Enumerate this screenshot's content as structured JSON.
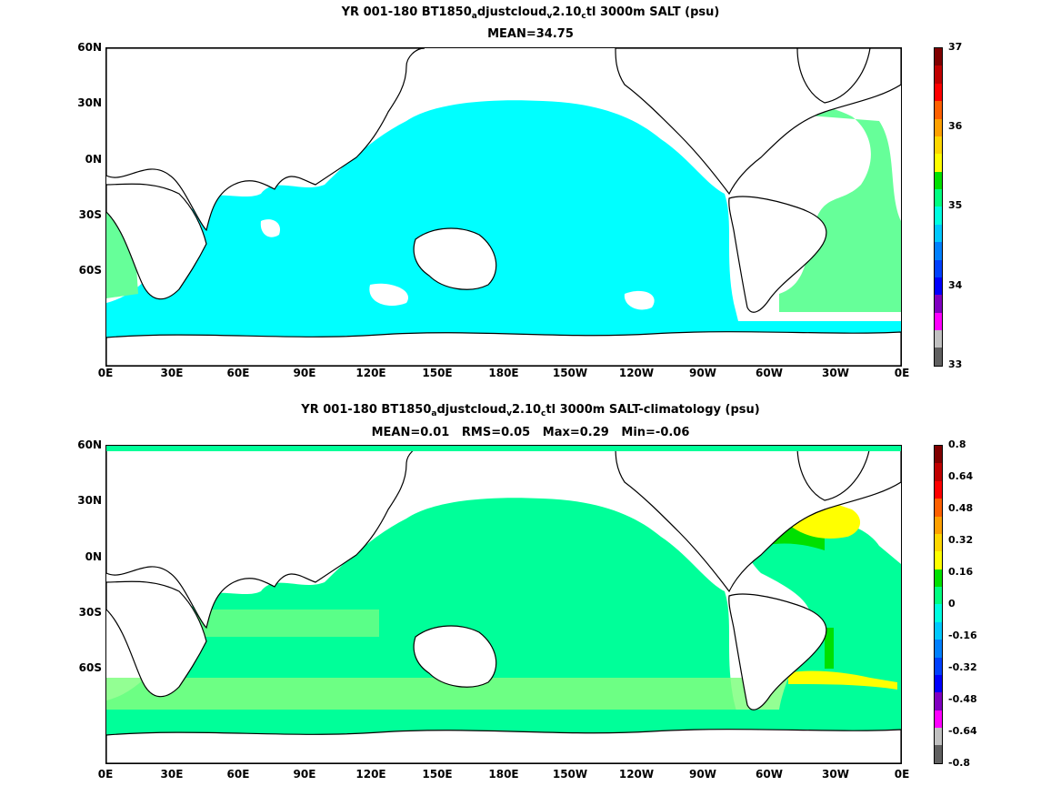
{
  "top": {
    "title_pre": "YR 001-180 BT1850",
    "title_sub1": "a",
    "title_mid": "djustcloud",
    "title_sub2": "v",
    "title_mid2": "2.10",
    "title_sub3": "c",
    "title_post": "tl 3000m SALT (psu)",
    "stats": "MEAN=34.75",
    "colorbar": {
      "labels": [
        "37",
        "36",
        "35",
        "34",
        "33"
      ],
      "colors": [
        "#800000",
        "#c00000",
        "#ff0000",
        "#ff6000",
        "#ffa000",
        "#ffd700",
        "#ffff00",
        "#00e000",
        "#00ff80",
        "#00ffe0",
        "#00c8ff",
        "#0080ff",
        "#0040ff",
        "#0000ff",
        "#8000c0",
        "#ff00ff",
        "#c0c0c0",
        "#606060"
      ]
    }
  },
  "bottom": {
    "title_pre": "YR 001-180 BT1850",
    "title_sub1": "a",
    "title_mid": "djustcloud",
    "title_sub2": "v",
    "title_mid2": "2.10",
    "title_sub3": "c",
    "title_post": "tl 3000m SALT-climatology (psu)",
    "stats": "MEAN=0.01   RMS=0.05   Max=0.29   Min=-0.06",
    "colorbar": {
      "labels": [
        "0.8",
        "0.64",
        "0.48",
        "0.32",
        "0.16",
        "0",
        "-0.16",
        "-0.32",
        "-0.48",
        "-0.64",
        "-0.8"
      ],
      "colors": [
        "#800000",
        "#c00000",
        "#ff0000",
        "#ff6000",
        "#ffa000",
        "#ffd700",
        "#ffff00",
        "#00e000",
        "#00ff80",
        "#00ffe0",
        "#00c8ff",
        "#0080ff",
        "#0040ff",
        "#0000ff",
        "#8000c0",
        "#ff00ff",
        "#c0c0c0",
        "#606060"
      ]
    }
  },
  "axes": {
    "y_ticks": [
      "60N",
      "30N",
      "0N",
      "30S",
      "60S"
    ],
    "x_ticks": [
      "0E",
      "30E",
      "60E",
      "90E",
      "120E",
      "150E",
      "180E",
      "150W",
      "120W",
      "90W",
      "60W",
      "30W",
      "0E"
    ]
  },
  "colors": {
    "land": "#ffffff",
    "ocean_top": "#00ffff",
    "ocean_bottom": "#00ff99",
    "atlantic_top": "#66ff99",
    "positive": "#00e000",
    "high": "#ffff00",
    "coast": "#000000"
  }
}
